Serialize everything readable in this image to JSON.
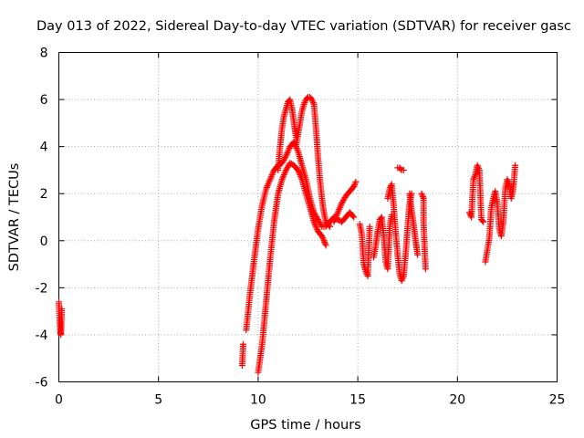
{
  "chart_data": {
    "type": "scatter",
    "title": "Day 013 of 2022, Sidereal Day-to-day VTEC variation (SDTVAR) for receiver gasc",
    "xlabel": "GPS time / hours",
    "ylabel": "SDTVAR / TECUs",
    "xlim": [
      0,
      25
    ],
    "ylim": [
      -6,
      8
    ],
    "xticks": [
      0,
      5,
      10,
      15,
      20,
      25
    ],
    "yticks": [
      -6,
      -4,
      -2,
      0,
      2,
      4,
      6,
      8
    ],
    "grid": true,
    "marker": "+",
    "color": "#ff0000",
    "series": [
      {
        "name": "SDTVAR",
        "curves": [
          {
            "x": [
              0.0,
              0.02,
              0.05,
              0.08,
              0.1,
              0.12,
              0.15
            ],
            "y": [
              -2.6,
              -3.0,
              -3.5,
              -3.9,
              -4.0,
              -3.7,
              -2.9
            ]
          },
          {
            "x": [
              9.2,
              9.25
            ],
            "y": [
              -5.3,
              -4.4
            ]
          },
          {
            "x": [
              9.4,
              9.6,
              9.8,
              10.0,
              10.2,
              10.4,
              10.6,
              10.8,
              11.0,
              11.2,
              11.4,
              11.6,
              11.8,
              12.0,
              12.2,
              12.4,
              12.6,
              12.8,
              13.0,
              13.2,
              13.4,
              13.6,
              13.8,
              14.0,
              14.2,
              14.4,
              14.6,
              14.8
            ],
            "y": [
              -3.8,
              -2.2,
              -0.8,
              0.5,
              1.5,
              2.2,
              2.6,
              3.0,
              3.2,
              3.3,
              3.6,
              4.0,
              4.2,
              3.8,
              3.2,
              2.6,
              1.8,
              1.2,
              0.9,
              0.6,
              0.6,
              0.8,
              1.0,
              0.9,
              0.8,
              1.0,
              1.2,
              1.0
            ]
          },
          {
            "x": [
              10.0,
              10.2,
              10.4,
              10.6,
              10.8,
              11.0,
              11.2,
              11.4,
              11.6,
              11.8,
              12.0,
              12.2,
              12.4,
              12.6,
              12.8,
              13.0,
              13.2,
              13.4
            ],
            "y": [
              -5.6,
              -4.4,
              -2.6,
              -0.8,
              0.8,
              2.0,
              2.6,
              3.0,
              3.3,
              3.2,
              3.0,
              2.6,
              2.0,
              1.4,
              0.8,
              0.4,
              0.2,
              -0.2
            ]
          },
          {
            "x": [
              11.0,
              11.1,
              11.2,
              11.3,
              11.4,
              11.5,
              11.6,
              11.7,
              11.8,
              11.9
            ],
            "y": [
              3.0,
              4.0,
              4.8,
              5.3,
              5.6,
              5.9,
              6.0,
              5.6,
              5.0,
              4.4
            ]
          },
          {
            "x": [
              11.9,
              12.0,
              12.1,
              12.2,
              12.3,
              12.4,
              12.5,
              12.6,
              12.7,
              12.8,
              12.9,
              13.0,
              13.1,
              13.2,
              13.3,
              13.4,
              13.6
            ],
            "y": [
              4.0,
              4.5,
              5.0,
              5.5,
              5.8,
              6.0,
              6.1,
              6.1,
              6.0,
              5.8,
              4.8,
              3.6,
              2.6,
              1.8,
              1.2,
              0.8,
              0.6
            ]
          },
          {
            "x": [
              13.8,
              14.0,
              14.2,
              14.4,
              14.6,
              14.8,
              14.9
            ],
            "y": [
              0.8,
              1.2,
              1.6,
              1.9,
              2.1,
              2.3,
              2.5
            ]
          },
          {
            "x": [
              15.1,
              15.2,
              15.3,
              15.4,
              15.5,
              15.6
            ],
            "y": [
              0.7,
              0.3,
              -1.0,
              -1.3,
              -1.5,
              0.6
            ]
          },
          {
            "x": [
              15.8,
              15.9,
              16.0,
              16.1,
              16.2,
              16.3,
              16.4,
              16.5,
              16.6,
              16.7
            ],
            "y": [
              -0.7,
              -0.2,
              0.4,
              0.9,
              1.0,
              0.2,
              -0.9,
              -1.2,
              0.6,
              1.1
            ]
          },
          {
            "x": [
              16.5,
              16.6,
              16.7,
              16.8,
              16.9,
              17.0,
              17.1,
              17.2,
              17.3,
              17.4,
              17.5,
              17.6,
              17.7
            ],
            "y": [
              1.8,
              2.2,
              2.4,
              1.5,
              0.4,
              -0.6,
              -1.4,
              -1.7,
              -1.5,
              -0.6,
              0.6,
              1.6,
              2.0
            ]
          },
          {
            "x": [
              17.0,
              17.1,
              17.2,
              17.3
            ],
            "y": [
              3.1,
              3.1,
              3.0,
              3.0
            ]
          },
          {
            "x": [
              17.6,
              17.7,
              17.8,
              17.9,
              18.0
            ],
            "y": [
              2.0,
              1.3,
              0.7,
              0.0,
              -0.6
            ]
          },
          {
            "x": [
              18.2,
              18.3,
              18.3,
              18.35,
              18.4
            ],
            "y": [
              2.0,
              1.8,
              0.8,
              -0.2,
              -1.2
            ]
          },
          {
            "x": [
              20.6,
              20.7,
              20.8,
              20.9,
              21.0,
              21.1,
              21.2,
              21.3
            ],
            "y": [
              1.2,
              1.0,
              2.6,
              2.8,
              3.2,
              3.0,
              0.9,
              0.8
            ]
          },
          {
            "x": [
              21.4,
              21.5,
              21.6,
              21.7,
              21.8,
              21.9,
              22.0,
              22.1,
              22.2,
              22.3,
              22.4,
              22.5,
              22.6,
              22.7,
              22.8,
              22.9
            ],
            "y": [
              -0.9,
              -0.4,
              0.1,
              1.4,
              1.8,
              2.1,
              1.6,
              0.5,
              0.2,
              0.8,
              2.2,
              2.6,
              2.4,
              1.8,
              2.2,
              3.2
            ]
          }
        ]
      }
    ]
  }
}
